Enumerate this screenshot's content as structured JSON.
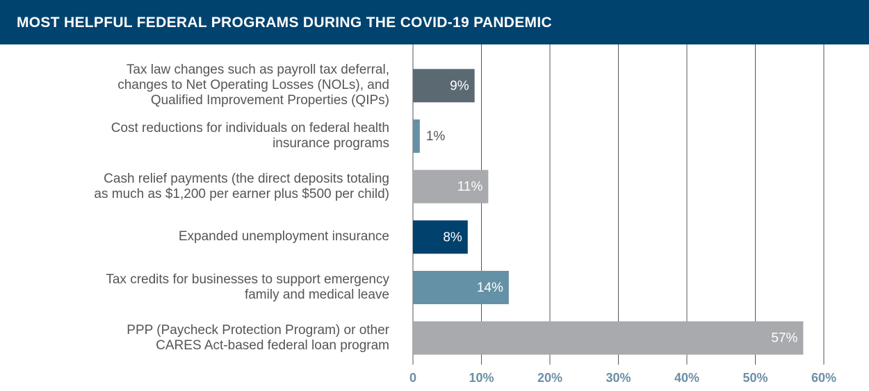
{
  "chart_data": {
    "type": "hbar",
    "title": "MOST HELPFUL FEDERAL PROGRAMS DURING THE COVID-19 PANDEMIC",
    "categories": [
      "Tax law changes such as payroll tax deferral,\nchanges to Net Operating Losses (NOLs), and\nQualified Improvement Properties (QIPs)",
      "Cost reductions for individuals on federal health\ninsurance programs",
      "Cash relief payments (the direct deposits totaling\nas much as $1,200 per earner plus $500 per child)",
      "Expanded unemployment insurance",
      "Tax credits for businesses to support emergency\nfamily and medical leave",
      "PPP (Paycheck Protection Program) or other\nCARES Act-based federal loan program"
    ],
    "values": [
      9,
      1,
      11,
      8,
      14,
      57
    ],
    "value_labels": [
      "9%",
      "1%",
      "11%",
      "8%",
      "14%",
      "57%"
    ],
    "colors": [
      "#5b6973",
      "#6591a6",
      "#a8aaad",
      "#00416d",
      "#6591a6",
      "#a8aaad"
    ],
    "xlim": [
      0,
      60
    ],
    "xticks": [
      0,
      {
        "value": 10,
        "label": "10%"
      },
      {
        "value": 20,
        "label": "20%"
      },
      {
        "value": 30,
        "label": "30%"
      },
      {
        "value": 40,
        "label": "40%"
      },
      {
        "value": 50,
        "label": "50%"
      },
      {
        "value": 60,
        "label": "60%"
      }
    ],
    "grid": true
  }
}
